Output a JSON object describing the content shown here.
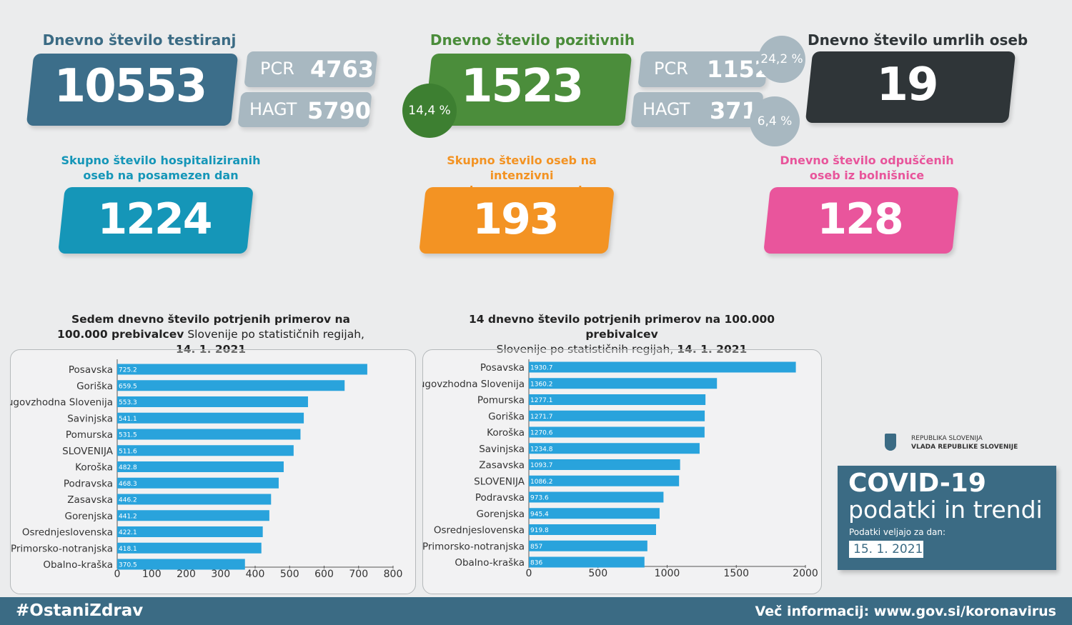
{
  "tests": {
    "title": "Dnevno število testiranj",
    "total": 10553,
    "pcr_label": "PCR",
    "pcr": 4763,
    "hagt_label": "HAGT",
    "hagt": 5790
  },
  "positives": {
    "title": "Dnevno število pozitivnih",
    "total": 1523,
    "total_share": "14,4 %",
    "pcr_label": "PCR",
    "pcr": 1152,
    "pcr_share": "24,2 %",
    "hagt_label": "HAGT",
    "hagt": 371,
    "hagt_share": "6,4 %"
  },
  "deaths": {
    "title": "Dnevno število umrlih oseb",
    "total": 19
  },
  "hospitalized": {
    "title_lines": [
      "Skupno število hospitaliziranih",
      "oseb na posamezen dan"
    ],
    "total": 1224
  },
  "intensive": {
    "title_lines": [
      "Skupno število oseb na intenzivni",
      "negi na posamezen dan"
    ],
    "total": 193
  },
  "discharged": {
    "title_lines": [
      "Dnevno število odpuščenih",
      "oseb iz bolnišnice"
    ],
    "total": 128
  },
  "chart_data": [
    {
      "type": "bar",
      "orientation": "horizontal",
      "title": "Sedem dnevno število potrjenih primerov na 100.000 prebivalcev",
      "subtitle": "Slovenije po statističnih regijah,",
      "date": "14. 1. 2021",
      "categories": [
        "Posavska",
        "Goriška",
        "Jugovzhodna Slovenija",
        "Savinjska",
        "Pomurska",
        "SLOVENIJA",
        "Koroška",
        "Podravska",
        "Zasavska",
        "Gorenjska",
        "Osrednjeslovenska",
        "Primorsko-notranjska",
        "Obalno-kraška"
      ],
      "values": [
        725.2,
        659.5,
        553.3,
        541.1,
        531.5,
        511.6,
        482.8,
        468.3,
        446.2,
        441.2,
        422.1,
        418.1,
        370.5
      ],
      "color": "#29a3dc",
      "xlim": [
        0,
        800
      ],
      "xticks": [
        0,
        100,
        200,
        300,
        400,
        500,
        600,
        700,
        800
      ],
      "grid": false
    },
    {
      "type": "bar",
      "orientation": "horizontal",
      "title": "14 dnevno število potrjenih primerov na 100.000 prebivalcev",
      "subtitle": "Slovenije po statističnih regijah,",
      "date": "14. 1. 2021",
      "categories": [
        "Posavska",
        "Jugovzhodna Slovenija",
        "Pomurska",
        "Goriška",
        "Koroška",
        "Savinjska",
        "Zasavska",
        "SLOVENIJA",
        "Podravska",
        "Gorenjska",
        "Osrednjeslovenska",
        "Primorsko-notranjska",
        "Obalno-kraška"
      ],
      "values": [
        1930.7,
        1360.2,
        1277.1,
        1271.7,
        1270.6,
        1234.8,
        1093.7,
        1086.2,
        973.6,
        945.4,
        919.8,
        857,
        836
      ],
      "color": "#29a3dc",
      "xlim": [
        0,
        2000
      ],
      "xticks": [
        0,
        500,
        1000,
        1500,
        2000
      ],
      "grid": false
    }
  ],
  "branding": {
    "org_line1": "REPUBLIKA SLOVENIJA",
    "org_line2": "VLADA REPUBLIKE SLOVENIJE",
    "title": "COVID-19",
    "subtitle": "podatki in trendi",
    "valid_label": "Podatki veljajo za dan:",
    "valid_date": "15. 1. 2021"
  },
  "footer": {
    "hashtag": "#OstaniZdrav",
    "more_info": "Več informacij: www.gov.si/koronavirus"
  }
}
